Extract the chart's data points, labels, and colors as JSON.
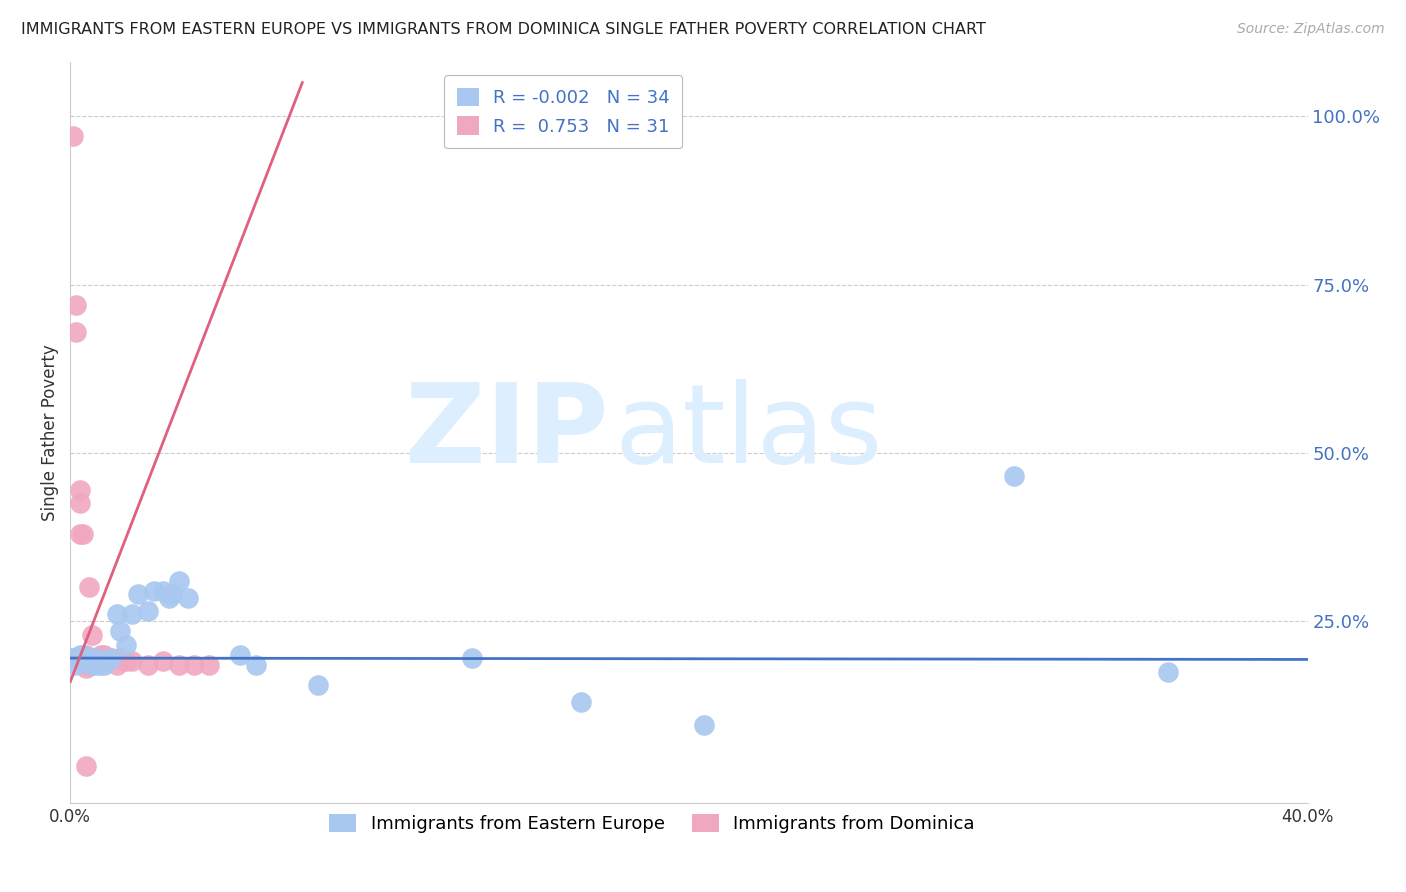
{
  "title": "IMMIGRANTS FROM EASTERN EUROPE VS IMMIGRANTS FROM DOMINICA SINGLE FATHER POVERTY CORRELATION CHART",
  "source": "Source: ZipAtlas.com",
  "xlabel_blue": "Immigrants from Eastern Europe",
  "xlabel_pink": "Immigrants from Dominica",
  "ylabel": "Single Father Poverty",
  "r_blue": -0.002,
  "n_blue": 34,
  "r_pink": 0.753,
  "n_pink": 31,
  "blue_color": "#a8c8f0",
  "pink_color": "#f0a8c0",
  "blue_line_color": "#4472c4",
  "pink_line_color": "#e06080",
  "right_axis_color": "#4472c4",
  "background_color": "#ffffff",
  "xlim": [
    0.0,
    0.4
  ],
  "ylim": [
    -0.02,
    1.08
  ],
  "yticks_right": [
    0.25,
    0.5,
    0.75,
    1.0
  ],
  "ytick_labels_right": [
    "25.0%",
    "50.0%",
    "75.0%",
    "100.0%"
  ],
  "xticks": [
    0.0,
    0.1,
    0.2,
    0.3,
    0.4
  ],
  "xtick_labels": [
    "0.0%",
    "",
    "",
    "",
    "40.0%"
  ],
  "blue_x": [
    0.001,
    0.002,
    0.003,
    0.003,
    0.004,
    0.005,
    0.006,
    0.007,
    0.008,
    0.009,
    0.01,
    0.011,
    0.012,
    0.013,
    0.015,
    0.016,
    0.018,
    0.02,
    0.022,
    0.025,
    0.027,
    0.03,
    0.032,
    0.033,
    0.035,
    0.038,
    0.055,
    0.06,
    0.08,
    0.13,
    0.165,
    0.205,
    0.305,
    0.355
  ],
  "blue_y": [
    0.195,
    0.185,
    0.2,
    0.19,
    0.2,
    0.195,
    0.19,
    0.185,
    0.195,
    0.185,
    0.185,
    0.185,
    0.19,
    0.195,
    0.26,
    0.235,
    0.215,
    0.26,
    0.29,
    0.265,
    0.295,
    0.295,
    0.285,
    0.29,
    0.31,
    0.285,
    0.2,
    0.185,
    0.155,
    0.195,
    0.13,
    0.095,
    0.465,
    0.175
  ],
  "pink_x": [
    0.001,
    0.001,
    0.002,
    0.002,
    0.003,
    0.003,
    0.003,
    0.004,
    0.005,
    0.005,
    0.005,
    0.006,
    0.006,
    0.006,
    0.007,
    0.007,
    0.008,
    0.009,
    0.01,
    0.011,
    0.012,
    0.013,
    0.015,
    0.016,
    0.018,
    0.02,
    0.025,
    0.03,
    0.035,
    0.04,
    0.045
  ],
  "pink_y": [
    0.97,
    0.195,
    0.68,
    0.72,
    0.425,
    0.445,
    0.38,
    0.38,
    0.2,
    0.18,
    0.035,
    0.185,
    0.195,
    0.3,
    0.185,
    0.23,
    0.195,
    0.195,
    0.2,
    0.2,
    0.195,
    0.195,
    0.185,
    0.195,
    0.19,
    0.19,
    0.185,
    0.19,
    0.185,
    0.185,
    0.185
  ],
  "pink_line_x": [
    0.0,
    0.075
  ],
  "pink_line_y": [
    0.16,
    1.05
  ],
  "blue_line_x": [
    0.0,
    0.4
  ],
  "blue_line_y": [
    0.195,
    0.193
  ]
}
